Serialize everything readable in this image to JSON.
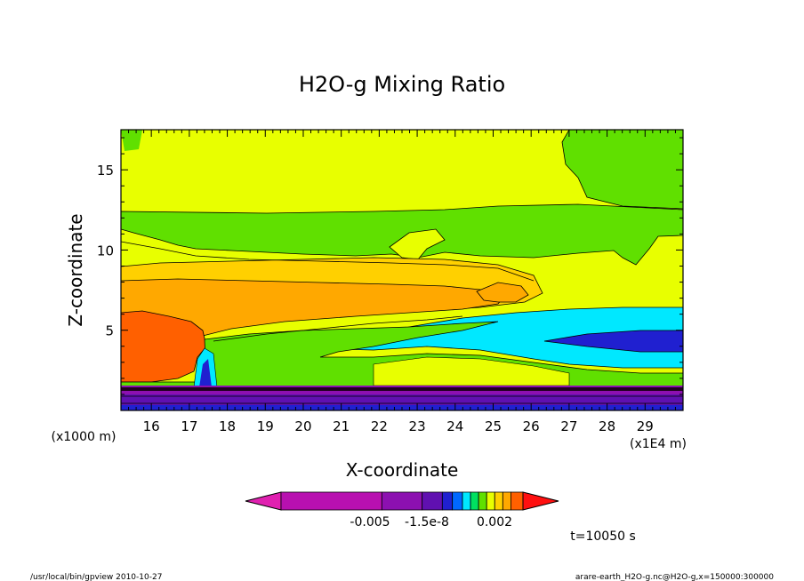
{
  "chart_data": {
    "type": "heatmap",
    "title": "H2O-g Mixing Ratio",
    "xlabel": "X-coordinate",
    "ylabel": "Z-coordinate",
    "x_unit_note": "(x1E4 m)",
    "y_unit_note": "(x1000 m)",
    "xlim": [
      15.2,
      30.0
    ],
    "ylim": [
      0.0,
      17.5
    ],
    "x_ticks": [
      16,
      17,
      18,
      19,
      20,
      21,
      22,
      23,
      24,
      25,
      26,
      27,
      28,
      29
    ],
    "y_ticks": [
      5,
      10,
      15
    ],
    "colorbar": {
      "colors": [
        "#e020b0",
        "#b810b0",
        "#8c10b0",
        "#6010b0",
        "#2020d0",
        "#0068ff",
        "#00e8ff",
        "#00e060",
        "#60e000",
        "#e8ff00",
        "#ffd000",
        "#ffa800",
        "#ff6000",
        "#ff1010"
      ],
      "tick_labels": [
        "-0.005",
        "-1.5e-8",
        "0.002"
      ]
    },
    "regions": [
      {
        "level": "yellow",
        "x": [
          15.2,
          30.0
        ],
        "y": [
          12.7,
          17.5
        ]
      },
      {
        "level": "green",
        "x": [
          15.2,
          30.0
        ],
        "y": [
          10.6,
          12.7
        ]
      },
      {
        "level": "yellow",
        "x": [
          15.2,
          30.0
        ],
        "y": [
          8.6,
          10.6
        ]
      },
      {
        "level": "orange",
        "x": [
          15.2,
          26.0
        ],
        "y": [
          6.0,
          8.6
        ]
      },
      {
        "level": "darkorange",
        "x": [
          15.2,
          17.5
        ],
        "y": [
          1.8,
          6.0
        ]
      },
      {
        "level": "cyan",
        "x": [
          23.0,
          30.0
        ],
        "y": [
          3.5,
          6.5
        ]
      },
      {
        "level": "blue",
        "x": [
          26.5,
          30.0
        ],
        "y": [
          3.8,
          4.9
        ]
      },
      {
        "level": "purple",
        "x": [
          15.2,
          30.0
        ],
        "y": [
          0.0,
          1.7
        ]
      }
    ],
    "grid": false,
    "legend": "bottom"
  },
  "annotations": {
    "time": "t=10050 s",
    "footer_left": "/usr/local/bin/gpview  2010-10-27",
    "footer_right": "arare-earth_H2O-g.nc@H2O-g,x=150000:300000"
  }
}
